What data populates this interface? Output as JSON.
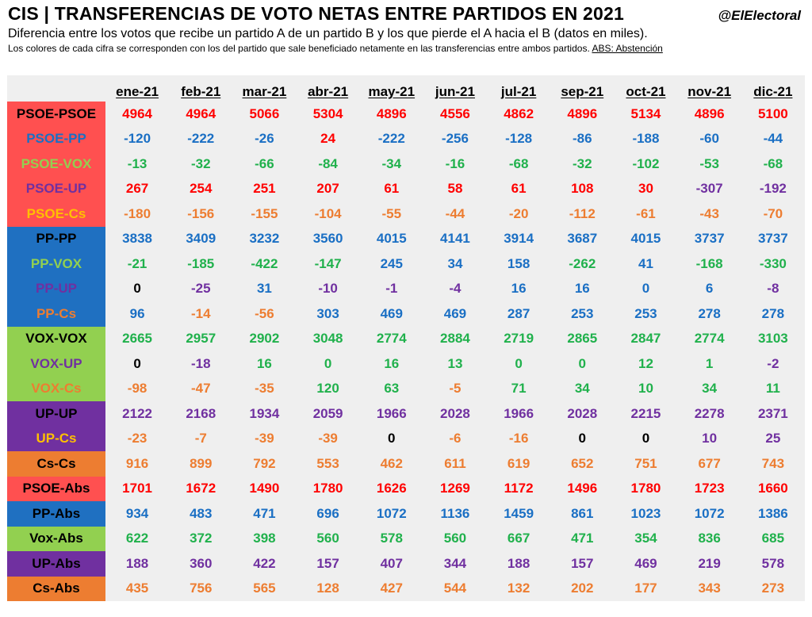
{
  "header": {
    "title": "CIS | TRANSFERENCIAS DE VOTO NETAS ENTRE PARTIDOS EN 2021",
    "handle": "@ElElectoral",
    "subtitle": "Diferencia entre los votos que recibe un partido A de un partido B y los que pierde el A hacia el B (datos en miles).",
    "note": "Los colores de cada cifra se corresponden con los del partido que sale beneficiado netamente en las transferencias entre ambos partidos.",
    "note_abs": "ABS: Abstención"
  },
  "colors": {
    "PSOE": "#ff0000",
    "PP": "#1a6fc4",
    "VOX": "#20b14c",
    "UP": "#7030a0",
    "Cs": "#ed7d31",
    "zero": "#000000",
    "PSOE_bg": "#ff5050",
    "PP_bg": "#1f70c1",
    "VOX_bg": "#92d050",
    "UP_bg": "#7030a0",
    "Cs_bg": "#ed7d31"
  },
  "chart_data": {
    "type": "table",
    "title": "CIS | TRANSFERENCIAS DE VOTO NETAS ENTRE PARTIDOS EN 2021",
    "columns": [
      "ene-21",
      "feb-21",
      "mar-21",
      "abr-21",
      "may-21",
      "jun-21",
      "jul-21",
      "sep-21",
      "oct-21",
      "nov-21",
      "dic-21"
    ],
    "rows": [
      {
        "label": "PSOE-PSOE",
        "label_color": "#000000",
        "bg": "#ff5050",
        "values": [
          4964,
          4964,
          5066,
          5304,
          4896,
          4556,
          4862,
          4896,
          5134,
          4896,
          5100
        ],
        "value_colors": [
          "PSOE",
          "PSOE",
          "PSOE",
          "PSOE",
          "PSOE",
          "PSOE",
          "PSOE",
          "PSOE",
          "PSOE",
          "PSOE",
          "PSOE"
        ]
      },
      {
        "label": "PSOE-PP",
        "label_color": "#1a6fc4",
        "bg": "#ff5050",
        "values": [
          -120,
          -222,
          -26,
          24,
          -222,
          -256,
          -128,
          -86,
          -188,
          -60,
          -44
        ],
        "value_colors": [
          "PP",
          "PP",
          "PP",
          "PSOE",
          "PP",
          "PP",
          "PP",
          "PP",
          "PP",
          "PP",
          "PP"
        ]
      },
      {
        "label": "PSOE-VOX",
        "label_color": "#92d050",
        "bg": "#ff5050",
        "values": [
          -13,
          -32,
          -66,
          -84,
          -34,
          -16,
          -68,
          -32,
          -102,
          -53,
          -68
        ],
        "value_colors": [
          "VOX",
          "VOX",
          "VOX",
          "VOX",
          "VOX",
          "VOX",
          "VOX",
          "VOX",
          "VOX",
          "VOX",
          "VOX"
        ]
      },
      {
        "label": "PSOE-UP",
        "label_color": "#7030a0",
        "bg": "#ff5050",
        "values": [
          267,
          254,
          251,
          207,
          61,
          58,
          61,
          108,
          30,
          -307,
          -192
        ],
        "value_colors": [
          "PSOE",
          "PSOE",
          "PSOE",
          "PSOE",
          "PSOE",
          "PSOE",
          "PSOE",
          "PSOE",
          "PSOE",
          "UP",
          "UP"
        ]
      },
      {
        "label": "PSOE-Cs",
        "label_color": "#ffc000",
        "bg": "#ff5050",
        "values": [
          -180,
          -156,
          -155,
          -104,
          -55,
          -44,
          -20,
          -112,
          -61,
          -43,
          -70
        ],
        "value_colors": [
          "Cs",
          "Cs",
          "Cs",
          "Cs",
          "Cs",
          "Cs",
          "Cs",
          "Cs",
          "Cs",
          "Cs",
          "Cs"
        ]
      },
      {
        "label": "PP-PP",
        "label_color": "#000000",
        "bg": "#1f70c1",
        "values": [
          3838,
          3409,
          3232,
          3560,
          4015,
          4141,
          3914,
          3687,
          4015,
          3737,
          3737
        ],
        "value_colors": [
          "PP",
          "PP",
          "PP",
          "PP",
          "PP",
          "PP",
          "PP",
          "PP",
          "PP",
          "PP",
          "PP"
        ]
      },
      {
        "label": "PP-VOX",
        "label_color": "#92d050",
        "bg": "#1f70c1",
        "values": [
          -21,
          -185,
          -422,
          -147,
          245,
          34,
          158,
          -262,
          41,
          -168,
          -330
        ],
        "value_colors": [
          "VOX",
          "VOX",
          "VOX",
          "VOX",
          "PP",
          "PP",
          "PP",
          "VOX",
          "PP",
          "VOX",
          "VOX"
        ]
      },
      {
        "label": "PP-UP",
        "label_color": "#7030a0",
        "bg": "#1f70c1",
        "values": [
          0,
          -25,
          31,
          -10,
          -1,
          -4,
          16,
          16,
          0,
          6,
          -8
        ],
        "value_colors": [
          "zero",
          "UP",
          "PP",
          "UP",
          "UP",
          "UP",
          "PP",
          "PP",
          "PP",
          "PP",
          "UP"
        ]
      },
      {
        "label": "PP-Cs",
        "label_color": "#ed7d31",
        "bg": "#1f70c1",
        "values": [
          96,
          -14,
          -56,
          303,
          469,
          469,
          287,
          253,
          253,
          278,
          278
        ],
        "value_colors": [
          "PP",
          "Cs",
          "Cs",
          "PP",
          "PP",
          "PP",
          "PP",
          "PP",
          "PP",
          "PP",
          "PP"
        ]
      },
      {
        "label": "VOX-VOX",
        "label_color": "#000000",
        "bg": "#92d050",
        "values": [
          2665,
          2957,
          2902,
          3048,
          2774,
          2884,
          2719,
          2865,
          2847,
          2774,
          3103
        ],
        "value_colors": [
          "VOX",
          "VOX",
          "VOX",
          "VOX",
          "VOX",
          "VOX",
          "VOX",
          "VOX",
          "VOX",
          "VOX",
          "VOX"
        ]
      },
      {
        "label": "VOX-UP",
        "label_color": "#7030a0",
        "bg": "#92d050",
        "values": [
          0,
          -18,
          16,
          0,
          16,
          13,
          0,
          0,
          12,
          1,
          -2
        ],
        "value_colors": [
          "zero",
          "UP",
          "VOX",
          "VOX",
          "VOX",
          "VOX",
          "VOX",
          "VOX",
          "VOX",
          "VOX",
          "UP"
        ]
      },
      {
        "label": "VOX-Cs",
        "label_color": "#ed7d31",
        "bg": "#92d050",
        "values": [
          -98,
          -47,
          -35,
          120,
          63,
          -5,
          71,
          34,
          10,
          34,
          11
        ],
        "value_colors": [
          "Cs",
          "Cs",
          "Cs",
          "VOX",
          "VOX",
          "Cs",
          "VOX",
          "VOX",
          "VOX",
          "VOX",
          "VOX"
        ]
      },
      {
        "label": "UP-UP",
        "label_color": "#000000",
        "bg": "#7030a0",
        "values": [
          2122,
          2168,
          1934,
          2059,
          1966,
          2028,
          1966,
          2028,
          2215,
          2278,
          2371
        ],
        "value_colors": [
          "UP",
          "UP",
          "UP",
          "UP",
          "UP",
          "UP",
          "UP",
          "UP",
          "UP",
          "UP",
          "UP"
        ]
      },
      {
        "label": "UP-Cs",
        "label_color": "#ffc000",
        "bg": "#7030a0",
        "values": [
          -23,
          -7,
          -39,
          -39,
          0,
          -6,
          -16,
          0,
          0,
          10,
          25
        ],
        "value_colors": [
          "Cs",
          "Cs",
          "Cs",
          "Cs",
          "zero",
          "Cs",
          "Cs",
          "zero",
          "zero",
          "UP",
          "UP"
        ]
      },
      {
        "label": "Cs-Cs",
        "label_color": "#000000",
        "bg": "#ed7d31",
        "values": [
          916,
          899,
          792,
          553,
          462,
          611,
          619,
          652,
          751,
          677,
          743
        ],
        "value_colors": [
          "Cs",
          "Cs",
          "Cs",
          "Cs",
          "Cs",
          "Cs",
          "Cs",
          "Cs",
          "Cs",
          "Cs",
          "Cs"
        ]
      },
      {
        "label": "PSOE-Abs",
        "label_color": "#000000",
        "bg": "#ff5050",
        "values": [
          1701,
          1672,
          1490,
          1780,
          1626,
          1269,
          1172,
          1496,
          1780,
          1723,
          1660
        ],
        "value_colors": [
          "PSOE",
          "PSOE",
          "PSOE",
          "PSOE",
          "PSOE",
          "PSOE",
          "PSOE",
          "PSOE",
          "PSOE",
          "PSOE",
          "PSOE"
        ]
      },
      {
        "label": "PP-Abs",
        "label_color": "#000000",
        "bg": "#1f70c1",
        "values": [
          934,
          483,
          471,
          696,
          1072,
          1136,
          1459,
          861,
          1023,
          1072,
          1386
        ],
        "value_colors": [
          "PP",
          "PP",
          "PP",
          "PP",
          "PP",
          "PP",
          "PP",
          "PP",
          "PP",
          "PP",
          "PP"
        ]
      },
      {
        "label": "Vox-Abs",
        "label_color": "#000000",
        "bg": "#92d050",
        "values": [
          622,
          372,
          398,
          560,
          578,
          560,
          667,
          471,
          354,
          836,
          685
        ],
        "value_colors": [
          "VOX",
          "VOX",
          "VOX",
          "VOX",
          "VOX",
          "VOX",
          "VOX",
          "VOX",
          "VOX",
          "VOX",
          "VOX"
        ]
      },
      {
        "label": "UP-Abs",
        "label_color": "#000000",
        "bg": "#7030a0",
        "values": [
          188,
          360,
          422,
          157,
          407,
          344,
          188,
          157,
          469,
          219,
          578
        ],
        "value_colors": [
          "UP",
          "UP",
          "UP",
          "UP",
          "UP",
          "UP",
          "UP",
          "UP",
          "UP",
          "UP",
          "UP"
        ]
      },
      {
        "label": "Cs-Abs",
        "label_color": "#000000",
        "bg": "#ed7d31",
        "values": [
          435,
          756,
          565,
          128,
          427,
          544,
          132,
          202,
          177,
          343,
          273
        ],
        "value_colors": [
          "Cs",
          "Cs",
          "Cs",
          "Cs",
          "Cs",
          "Cs",
          "Cs",
          "Cs",
          "Cs",
          "Cs",
          "Cs"
        ]
      }
    ]
  }
}
